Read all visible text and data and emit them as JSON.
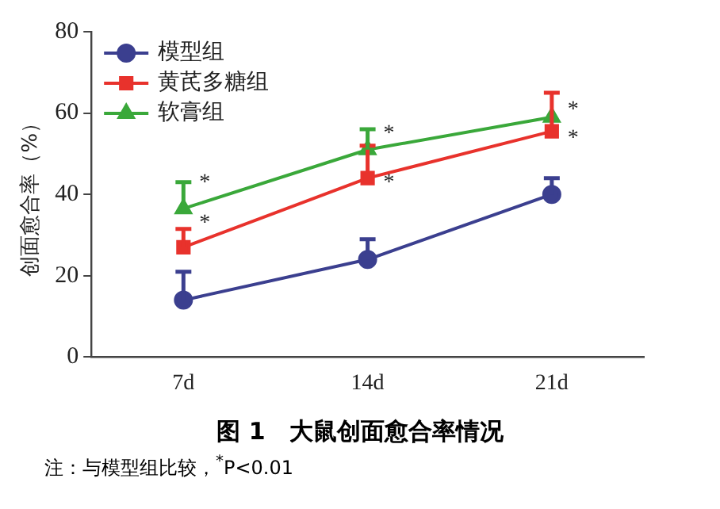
{
  "chart_data": {
    "type": "line",
    "title": "图 1　大鼠创面愈合率情况",
    "ylabel": "创面愈合率（%）",
    "categories": [
      "7d",
      "14d",
      "21d"
    ],
    "ylim": [
      0,
      80
    ],
    "yticks": [
      0,
      20,
      40,
      60,
      80
    ],
    "grid": false,
    "legend": "top left",
    "series": [
      {
        "name": "模型组",
        "color": "#3b3f8f",
        "marker": "circle",
        "values": [
          14,
          24,
          40
        ],
        "errors": [
          [
            14,
            21
          ],
          [
            24,
            29
          ],
          [
            40,
            44
          ]
        ]
      },
      {
        "name": "黄芪多糖组",
        "color": "#e8322c",
        "marker": "square",
        "values": [
          27,
          44,
          55.5
        ],
        "errors": [
          [
            27,
            31.5
          ],
          [
            44,
            52
          ],
          [
            55.5,
            65
          ]
        ]
      },
      {
        "name": "软膏组",
        "color": "#3aa83a",
        "marker": "triangle",
        "values": [
          36.5,
          51,
          59
        ],
        "errors": [
          [
            36.5,
            43
          ],
          [
            51,
            56
          ],
          null
        ]
      }
    ],
    "annotations": [
      {
        "text": "*",
        "x": "7d",
        "y": 44
      },
      {
        "text": "*",
        "x": "7d",
        "y": 34
      },
      {
        "text": "*",
        "x": "14d",
        "y": 56
      },
      {
        "text": "*",
        "x": "14d",
        "y": 44
      },
      {
        "text": "*",
        "x": "21d",
        "y": 62
      },
      {
        "text": "*",
        "x": "21d",
        "y": 55
      },
      "注：与模型组比较，$^{*}$P<0.01"
    ]
  }
}
